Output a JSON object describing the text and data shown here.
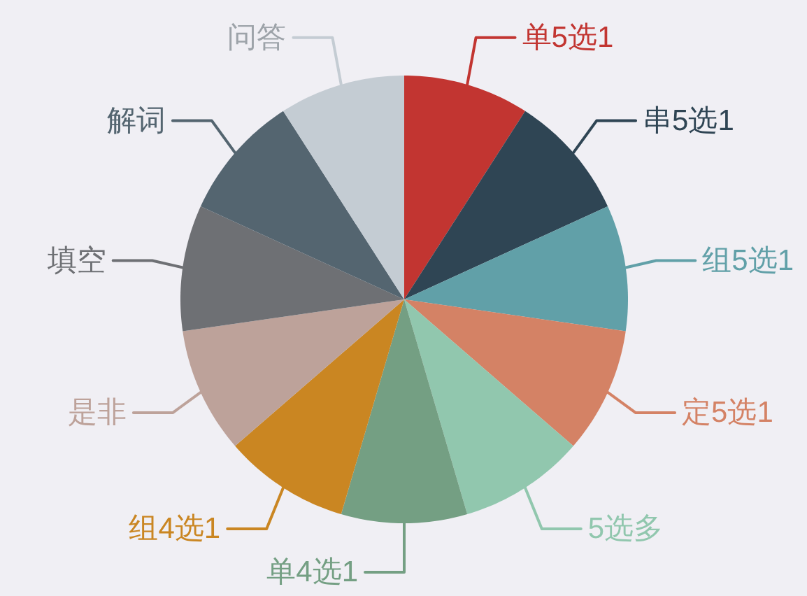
{
  "chart_data": {
    "type": "pie",
    "categories": [
      "单5选1",
      "串5选1",
      "组5选1",
      "定5选1",
      "5选多",
      "单4选1",
      "组4选1",
      "是非",
      "填空",
      "解词",
      "问答"
    ],
    "values": [
      9.09,
      9.09,
      9.09,
      9.09,
      9.09,
      9.09,
      9.09,
      9.09,
      9.09,
      9.09,
      9.09
    ],
    "colors": [
      "#c23531",
      "#2f4554",
      "#61a0a8",
      "#d48265",
      "#91c7ae",
      "#749f83",
      "#ca8622",
      "#bda29a",
      "#6e7074",
      "#546570",
      "#c4ccd3"
    ]
  }
}
